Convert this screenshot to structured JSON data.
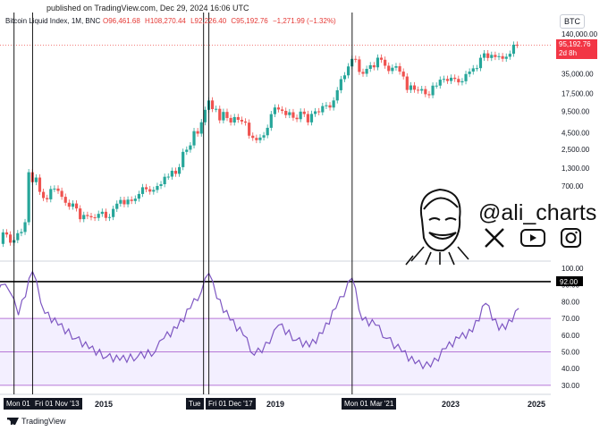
{
  "header": {
    "published": "published on TradingView.com, Dec 29, 2024 16:06 UTC",
    "symbol": "Bitcoin Liquid Index, 1M, BNC",
    "ohlc": [
      "O96,461.68",
      "H108,270.44",
      "L92,226.40",
      "C95,192.76",
      "−1,271.99 (−1.32%)"
    ]
  },
  "axis_button": "BTC",
  "price_tag": {
    "price": "95,192.76",
    "countdown": "2d 8h"
  },
  "watermark": {
    "handle": "@ali_charts",
    "icons": [
      "caricature-logo",
      "x-icon",
      "youtube-icon",
      "instagram-icon"
    ]
  },
  "footer": {
    "logo_text": "TradingView"
  },
  "x_labels": [
    "2015",
    "2019",
    "2023",
    "2025"
  ],
  "x_flags": [
    "Mon 01",
    "Fri 01 Nov '13",
    "Tue",
    "Fri 01 Dec '17",
    "Mon 01 Mar '21"
  ],
  "colors": {
    "up": "#26a69a",
    "down": "#ef5350",
    "rsi_line": "#7e57c2",
    "band": "#f3efff",
    "band_line": "#b678d6",
    "threshold": "#000000"
  },
  "chart_data": [
    {
      "type": "candlestick",
      "title": "Bitcoin Liquid Index, 1M, BNC",
      "scale": "log",
      "ylabel": "",
      "y_ticks": [
        140000,
        70000,
        35000,
        17500,
        9500,
        4500,
        2500,
        1300,
        700
      ],
      "y_tick_labels": [
        "140,000.00",
        "70,000.00",
        "35,000.00",
        "17,500.00",
        "9,500.00",
        "4,500.00",
        "2,500.00",
        "1,300.00",
        "700.00"
      ],
      "last_price": 95192.76,
      "x_range": [
        "2013-01",
        "2024-12"
      ],
      "approx_monthly_close": [
        [
          2013,
          [
            20,
            33,
            93,
            139,
            129,
            97,
            106,
            135,
            141,
            198,
            1130,
            800
          ]
        ],
        [
          2014,
          [
            940,
            570,
            460,
            440,
            630,
            640,
            590,
            480,
            390,
            340,
            380,
            320
          ]
        ],
        [
          2015,
          [
            220,
            255,
            245,
            235,
            230,
            265,
            285,
            230,
            237,
            315,
            378,
            430
          ]
        ],
        [
          2016,
          [
            370,
            435,
            415,
            450,
            530,
            670,
            625,
            575,
            610,
            700,
            745,
            965
          ]
        ],
        [
          2017,
          [
            970,
            1190,
            1070,
            1350,
            2300,
            2480,
            2880,
            4730,
            4340,
            6450,
            9950,
            13800
          ]
        ],
        [
          2018,
          [
            10200,
            10300,
            6900,
            9250,
            7490,
            6400,
            7730,
            7030,
            6630,
            6370,
            4040,
            3740
          ]
        ],
        [
          2019,
          [
            3460,
            3790,
            4100,
            5320,
            8560,
            10800,
            10080,
            9600,
            8290,
            9150,
            7550,
            7190
          ]
        ],
        [
          2020,
          [
            9350,
            8600,
            6430,
            8630,
            9450,
            9140,
            11350,
            11660,
            10780,
            13800,
            19700,
            28990
          ]
        ],
        [
          2021,
          [
            33100,
            45200,
            58800,
            57700,
            37300,
            35000,
            41500,
            47100,
            43800,
            61300,
            57000,
            46300
          ]
        ],
        [
          2022,
          [
            38500,
            43200,
            45500,
            37700,
            31800,
            19900,
            23300,
            20050,
            19430,
            20500,
            17160,
            16550
          ]
        ],
        [
          2023,
          [
            23130,
            23150,
            28480,
            29250,
            27220,
            30480,
            29230,
            25940,
            26970,
            34650,
            37720,
            42280
          ]
        ],
        [
          2024,
          [
            42580,
            61130,
            71300,
            60650,
            67500,
            62700,
            64600,
            58970,
            63330,
            70200,
            96400,
            95192
          ]
        ]
      ]
    },
    {
      "type": "line",
      "title": "",
      "y_ticks": [
        30,
        40,
        50,
        60,
        70,
        80,
        90,
        100
      ],
      "y_tick_labels": [
        "30.00",
        "40.00",
        "50.00",
        "60.00",
        "70.00",
        "80.00",
        "90.00",
        "100.00"
      ],
      "threshold": 92,
      "threshold_label": "92.00",
      "band": [
        50,
        70
      ],
      "band_lines": [
        30,
        50,
        70
      ],
      "annual_rsi_points": [
        [
          2012.5,
          70
        ],
        [
          2012.8,
          76
        ],
        [
          2013.2,
          90
        ],
        [
          2013.4,
          86
        ],
        [
          2013.6,
          72
        ],
        [
          2013.92,
          98
        ],
        [
          2014.2,
          73
        ],
        [
          2014.5,
          66
        ],
        [
          2014.9,
          58
        ],
        [
          2015.2,
          52
        ],
        [
          2015.6,
          47
        ],
        [
          2015.9,
          45
        ],
        [
          2016.3,
          47
        ],
        [
          2016.7,
          50
        ],
        [
          2016.9,
          58
        ],
        [
          2017.2,
          64
        ],
        [
          2017.5,
          76
        ],
        [
          2017.75,
          86
        ],
        [
          2017.92,
          97
        ],
        [
          2018.1,
          82
        ],
        [
          2018.4,
          69
        ],
        [
          2018.7,
          60
        ],
        [
          2018.95,
          48
        ],
        [
          2019.3,
          55
        ],
        [
          2019.5,
          66
        ],
        [
          2019.9,
          57
        ],
        [
          2020.2,
          53
        ],
        [
          2020.5,
          61
        ],
        [
          2020.8,
          76
        ],
        [
          2021.17,
          94
        ],
        [
          2021.4,
          69
        ],
        [
          2021.7,
          66
        ],
        [
          2021.95,
          58
        ],
        [
          2022.3,
          50
        ],
        [
          2022.6,
          43
        ],
        [
          2022.95,
          41
        ],
        [
          2023.3,
          52
        ],
        [
          2023.6,
          58
        ],
        [
          2023.9,
          62
        ],
        [
          2024.2,
          79
        ],
        [
          2024.5,
          63
        ],
        [
          2024.8,
          68
        ],
        [
          2024.95,
          76
        ]
      ]
    }
  ]
}
